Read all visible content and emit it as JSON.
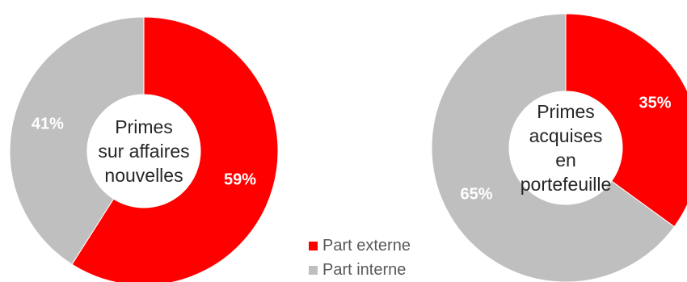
{
  "chart_data": [
    {
      "type": "pie",
      "center_label": [
        "Primes",
        "sur affaires",
        "nouvelles"
      ],
      "slices": [
        {
          "name": "Part externe",
          "value": 59,
          "label": "59%",
          "color": "#ff0000"
        },
        {
          "name": "Part interne",
          "value": 41,
          "label": "41%",
          "color": "#bfbfbf"
        }
      ]
    },
    {
      "type": "pie",
      "center_label": [
        "Primes",
        "acquises",
        "en",
        "portefeuille"
      ],
      "slices": [
        {
          "name": "Part externe",
          "value": 35,
          "label": "35%",
          "color": "#ff0000"
        },
        {
          "name": "Part interne",
          "value": 65,
          "label": "65%",
          "color": "#bfbfbf"
        }
      ]
    }
  ],
  "legend": {
    "items": [
      {
        "label": "Part externe",
        "color": "#ff0000"
      },
      {
        "label": "Part interne",
        "color": "#bfbfbf"
      }
    ]
  }
}
